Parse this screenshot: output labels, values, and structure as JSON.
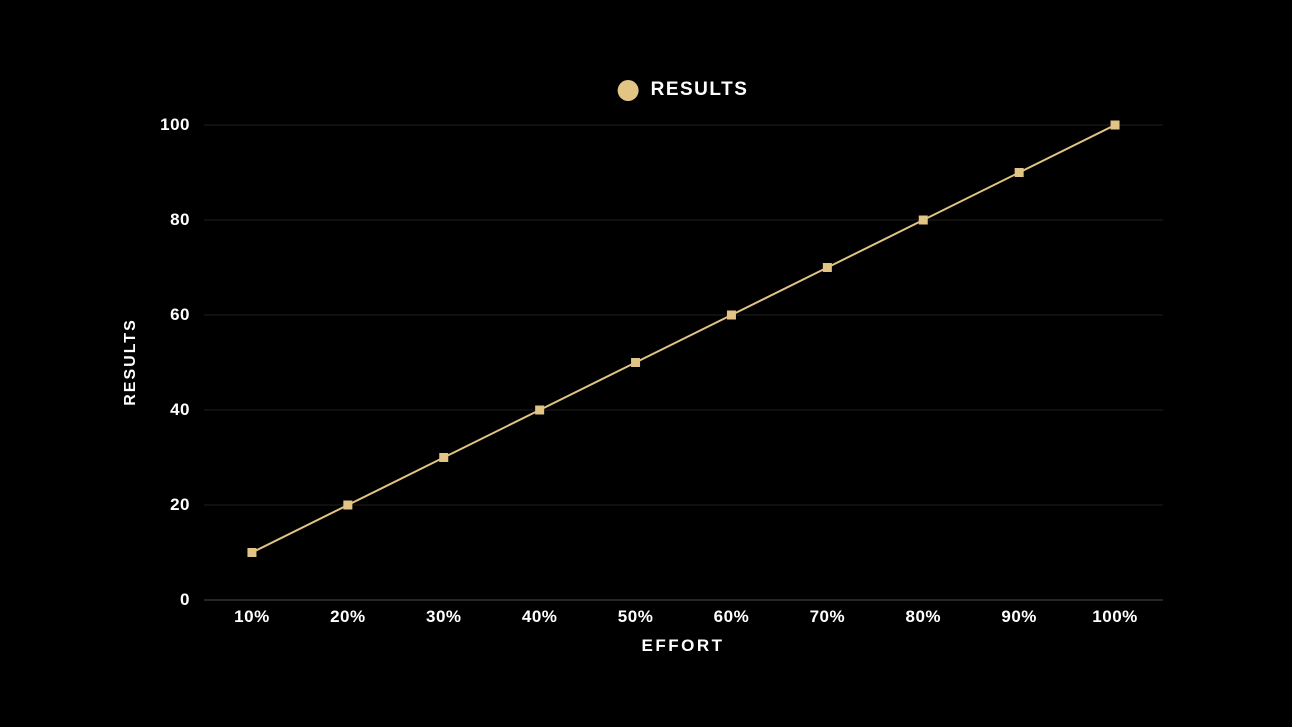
{
  "palette": {
    "background": "#000000",
    "series_color": "#e2c484",
    "text_color": "#ffffff",
    "gridline_color": "#202020",
    "axis_line_color": "#4d4d4d"
  },
  "legend": {
    "label": "RESULTS",
    "marker": "circle"
  },
  "chart_data": {
    "type": "line",
    "title": "",
    "categories": [
      "10%",
      "20%",
      "30%",
      "40%",
      "50%",
      "60%",
      "70%",
      "80%",
      "90%",
      "100%"
    ],
    "series": [
      {
        "name": "RESULTS",
        "values": [
          10,
          20,
          30,
          40,
          50,
          60,
          70,
          80,
          90,
          100
        ],
        "color": "#e2c484",
        "marker": "square"
      }
    ],
    "xlabel": "EFFORT",
    "ylabel": "RESULTS",
    "ylim": [
      0,
      100
    ],
    "yticks": [
      0,
      20,
      40,
      60,
      80,
      100
    ],
    "grid": true,
    "legend_position": "top-center"
  }
}
